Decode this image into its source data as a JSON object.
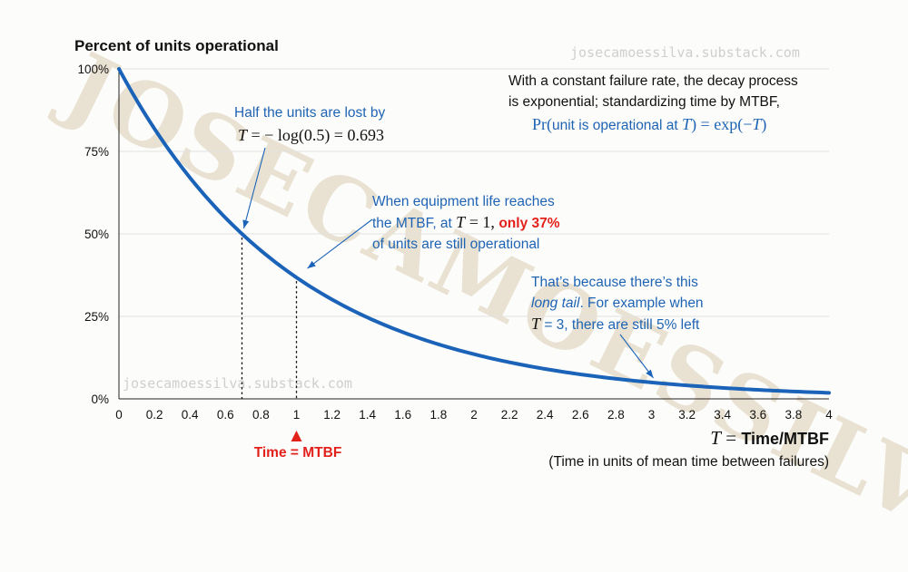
{
  "watermark": {
    "big": "JOSECAMOESSILVA",
    "small_top": "josecamoessilva.substack.com",
    "small_mid": "josecamoessilva.substack.com"
  },
  "chart_data": {
    "type": "line",
    "title": "Percent of units operational",
    "function": "exp(-T)",
    "xlim": [
      0,
      4
    ],
    "ylim": [
      0,
      100
    ],
    "x_ticks": [
      "0",
      "0.2",
      "0.4",
      "0.6",
      "0.8",
      "1",
      "1.2",
      "1.4",
      "1.6",
      "1.8",
      "2",
      "2.2",
      "2.4",
      "2.6",
      "2.8",
      "3",
      "3.2",
      "3.4",
      "3.6",
      "3.8",
      "4"
    ],
    "y_ticks": [
      "0%",
      "25%",
      "50%",
      "75%",
      "100%"
    ],
    "series": [
      {
        "name": "Pr(unit is operational at T)",
        "x": [
          0,
          0.2,
          0.4,
          0.6,
          0.693,
          0.8,
          1,
          1.2,
          1.4,
          1.6,
          1.8,
          2,
          2.2,
          2.4,
          2.6,
          2.8,
          3,
          3.2,
          3.4,
          3.6,
          3.8,
          4
        ],
        "y": [
          100,
          81.9,
          67.0,
          54.9,
          50,
          44.9,
          36.8,
          30.1,
          24.7,
          20.2,
          16.5,
          13.5,
          11.1,
          9.1,
          7.4,
          6.1,
          5.0,
          4.1,
          3.3,
          2.7,
          2.2,
          1.8
        ]
      }
    ],
    "xlabel_var": "T",
    "xlabel_eq": " = ",
    "xlabel": "Time/MTBF",
    "xlabel_sub": "(Time in units of mean time between failures)",
    "marker_label": "Time = MTBF",
    "marked_points": [
      0.693,
      1
    ],
    "colors": {
      "curve": "#1b63b8",
      "accent": "#e3211b",
      "grid": "#e2e2e2"
    }
  },
  "annotations": {
    "intro_1": "With a constant failure rate, the decay process",
    "intro_2": "is exponential; standardizing time by MTBF,",
    "formula_pr": "Pr(",
    "formula_text": "unit is operational at ",
    "formula_var": "T",
    "formula_end": ") = exp(−",
    "formula_var2": "T",
    "formula_close": ")",
    "half_line": "Half the units are lost by",
    "half_var": "T",
    "half_eq": " = − log(0.5) = 0.693",
    "mtbf_1": "When equipment life reaches",
    "mtbf_2a": "the MTBF, at ",
    "mtbf_var": "T",
    "mtbf_2b": " = 1, ",
    "mtbf_highlight": "only 37%",
    "mtbf_3": "of units are still operational",
    "tail_1": "That’s because there’s this",
    "tail_italic": "long tail",
    "tail_2": ". For example when",
    "tail_var": "T",
    "tail_3": " = 3, there are still 5% left"
  }
}
